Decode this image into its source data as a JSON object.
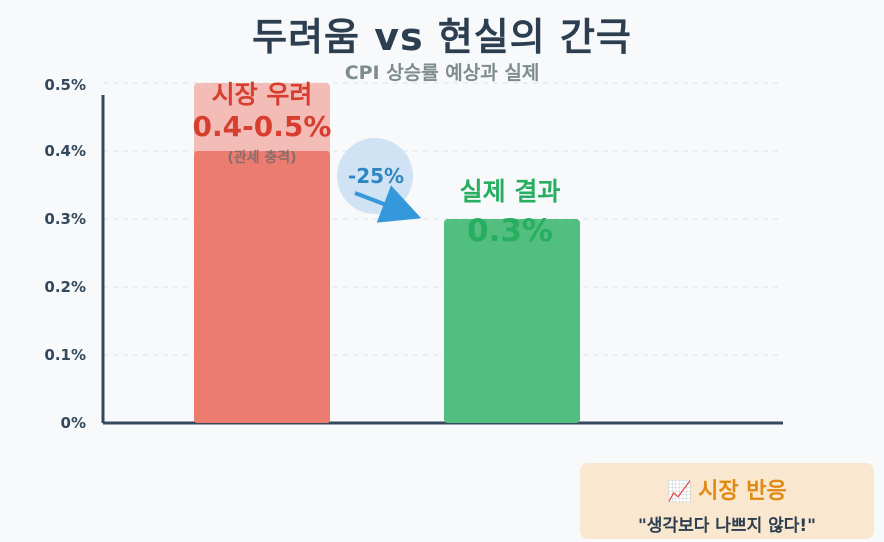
{
  "chart_data": {
    "type": "bar",
    "title": "두려움 vs 현실의 간극",
    "subtitle": "CPI 상승률 예상과 실제",
    "y_ticks": [
      "0%",
      "0.1%",
      "0.2%",
      "0.3%",
      "0.4%",
      "0.5%"
    ],
    "ylim": [
      0,
      0.5
    ],
    "grid": true,
    "bars": [
      {
        "name": "시장 우려",
        "value_text": "0.4-0.5%",
        "note": "(관세 충격)",
        "value": 0.4,
        "range_high": 0.5,
        "color": "#ec7b70",
        "range_color": "#f4bcb7",
        "label_color": "#d63e2f"
      },
      {
        "name": "실제 결과",
        "value_text": "0.3%",
        "value": 0.3,
        "color": "#52be80",
        "label_color": "#27ae60"
      }
    ],
    "change_annotation": "-25%"
  },
  "colors": {
    "axis": "#34495e",
    "arrow": "#3498db",
    "bubble": "#cfe3f4",
    "title": "#2c3e50"
  },
  "reaction": {
    "icon": "chart-increasing-icon",
    "icon_glyph": "📈",
    "title": "시장 반응",
    "quote": "\"생각보다 나쁘지 않다!\""
  }
}
